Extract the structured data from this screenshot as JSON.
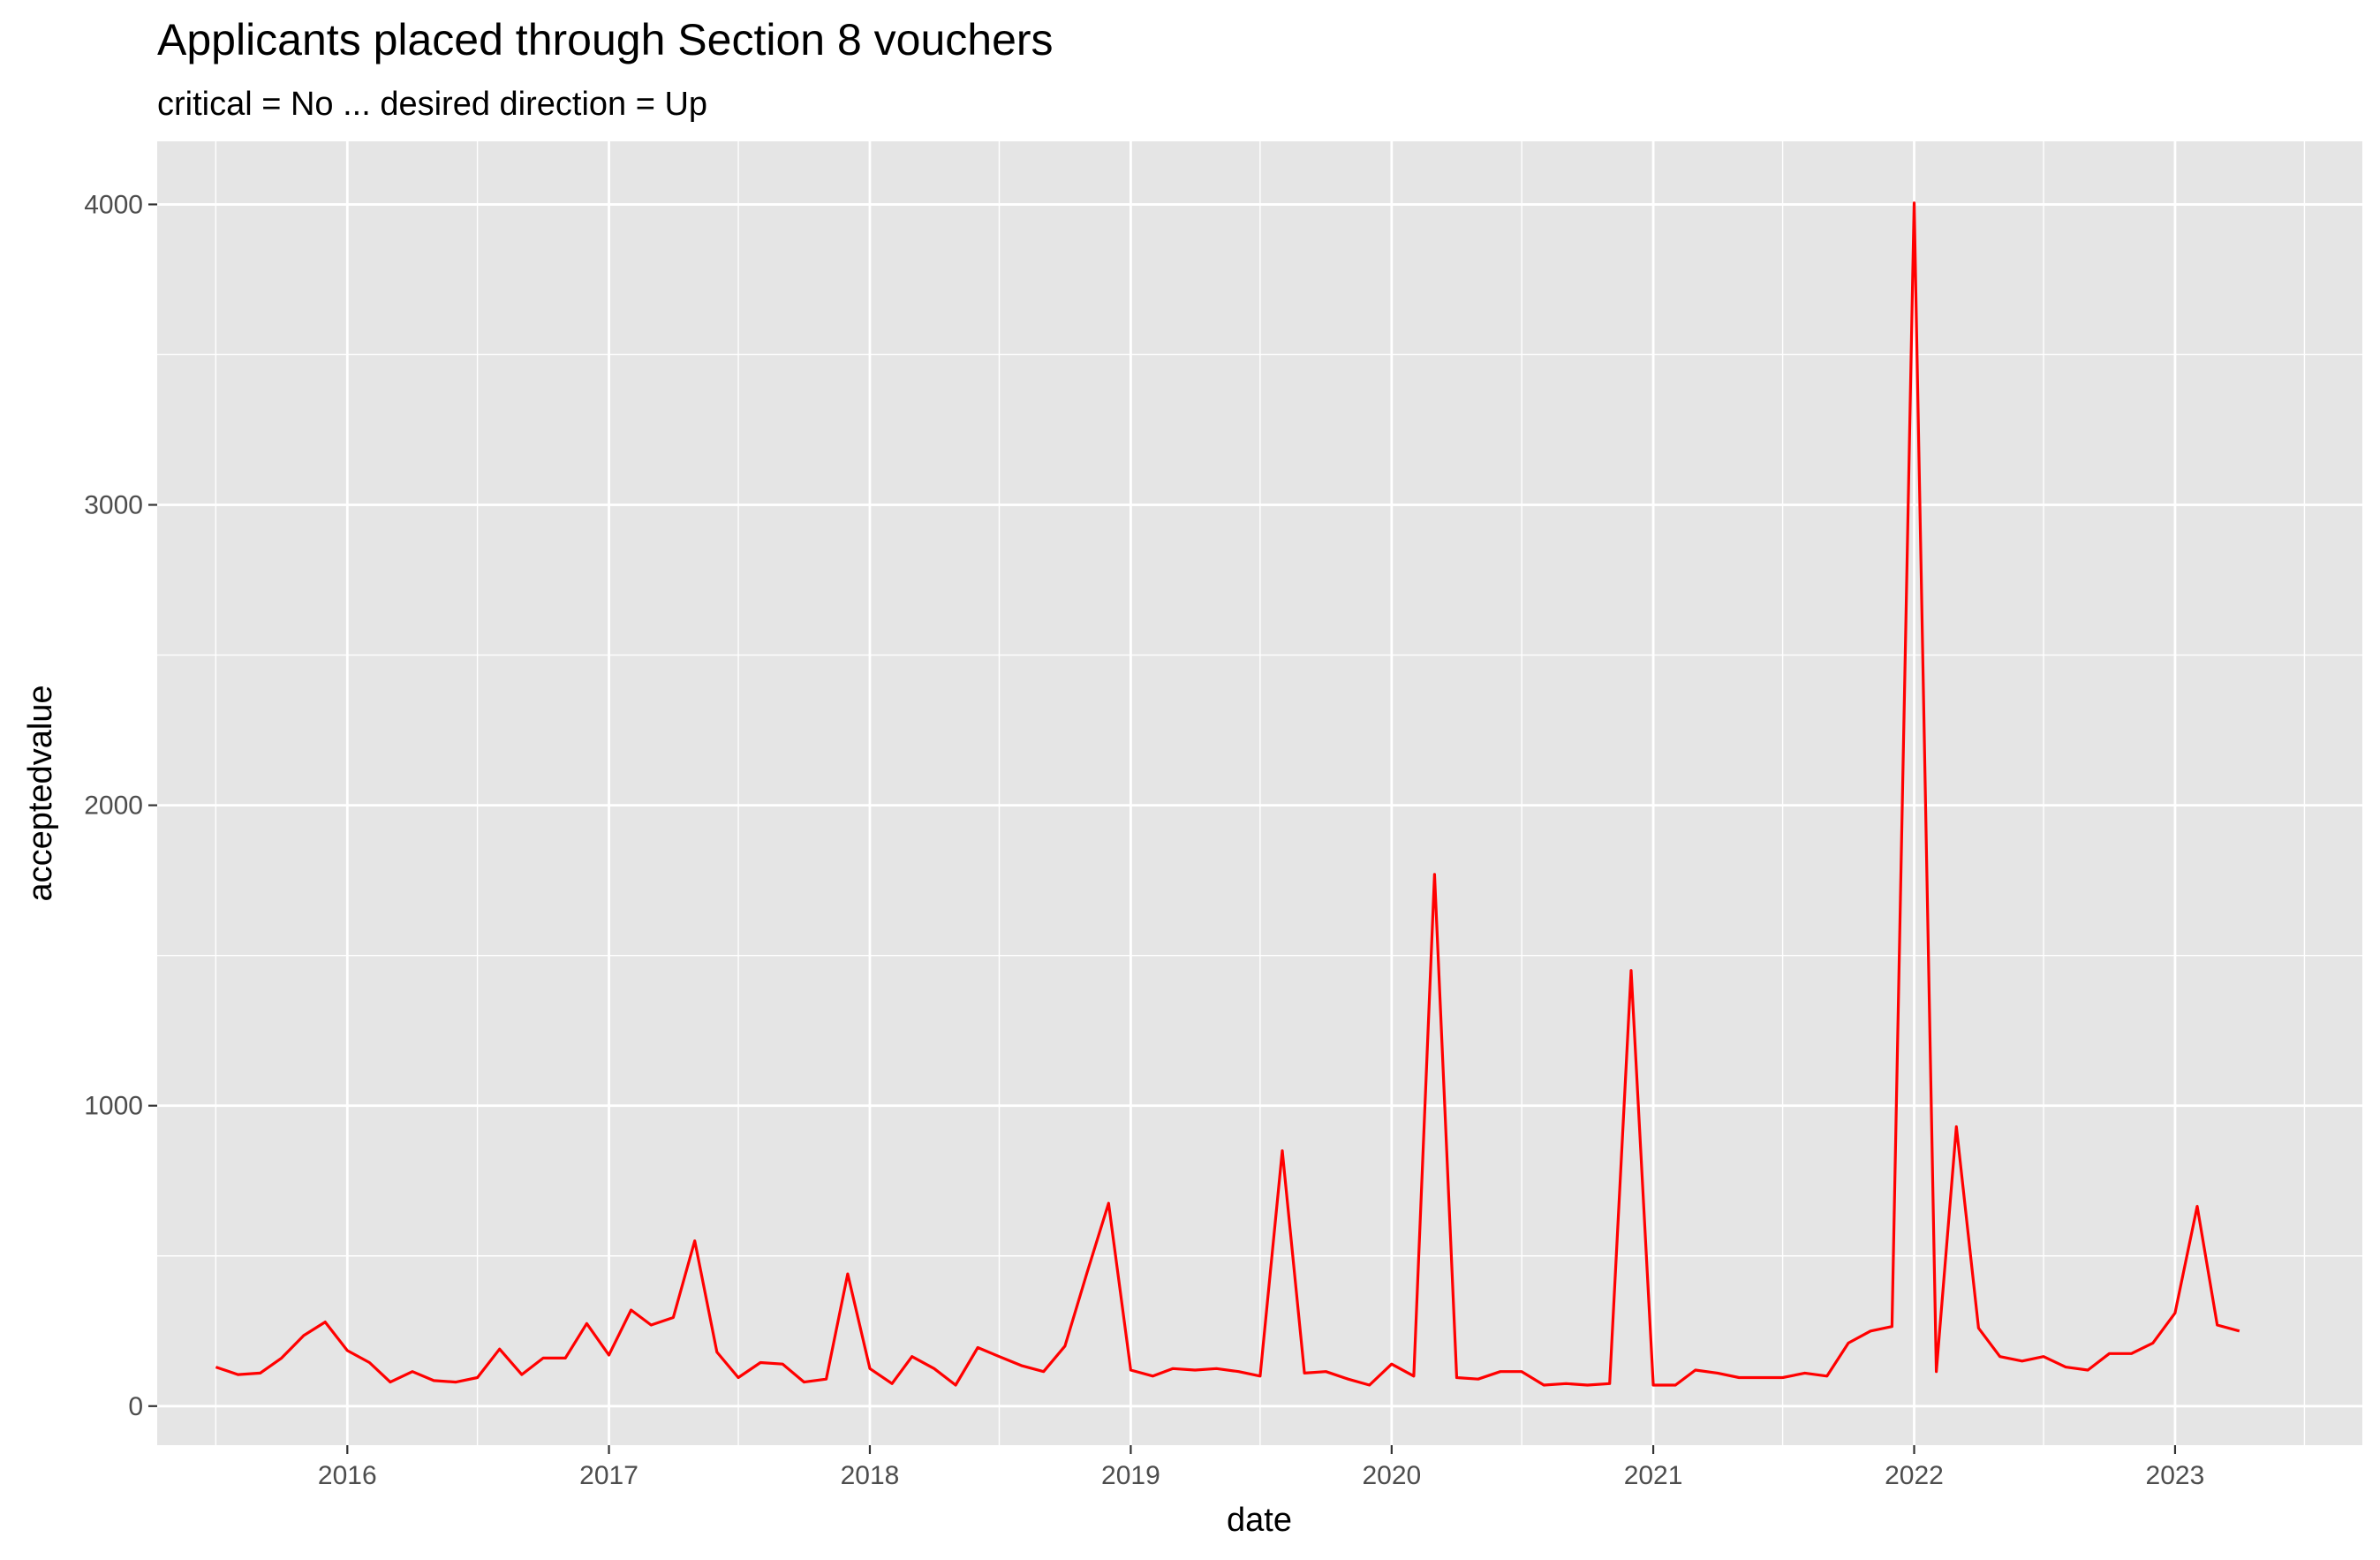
{
  "chart_data": {
    "type": "line",
    "title": "Applicants placed through Section 8 vouchers",
    "subtitle": "critical = No ... desired direction = Up",
    "xlabel": "date",
    "ylabel": "acceptedvalue",
    "xlim": [
      "2015-04-10",
      "2023-09-20"
    ],
    "ylim": [
      -130,
      4210
    ],
    "x_ticks": [
      "2016-01-01",
      "2017-01-01",
      "2018-01-01",
      "2019-01-01",
      "2020-01-01",
      "2021-01-01",
      "2022-01-01",
      "2023-01-01"
    ],
    "x_tick_labels": [
      "2016",
      "2017",
      "2018",
      "2019",
      "2020",
      "2021",
      "2022",
      "2023"
    ],
    "y_ticks": [
      0,
      1000,
      2000,
      3000,
      4000
    ],
    "y_tick_labels": [
      "0",
      "1000",
      "2000",
      "3000",
      "4000"
    ],
    "grid": true,
    "colors": {
      "panel": "#e5e5e5",
      "grid": "#ffffff",
      "line": "#ff0000"
    },
    "series": [
      {
        "color": "#ff0000",
        "x": [
          "2015-07-01",
          "2015-08-01",
          "2015-09-01",
          "2015-10-01",
          "2015-11-01",
          "2015-12-01",
          "2016-01-01",
          "2016-02-01",
          "2016-03-01",
          "2016-04-01",
          "2016-05-01",
          "2016-06-01",
          "2016-07-01",
          "2016-08-01",
          "2016-09-01",
          "2016-10-01",
          "2016-11-01",
          "2016-12-01",
          "2017-01-01",
          "2017-02-01",
          "2017-03-01",
          "2017-04-01",
          "2017-05-01",
          "2017-06-01",
          "2017-07-01",
          "2017-08-01",
          "2017-09-01",
          "2017-10-01",
          "2017-11-01",
          "2017-12-01",
          "2018-01-01",
          "2018-02-01",
          "2018-03-01",
          "2018-04-01",
          "2018-05-01",
          "2018-06-01",
          "2018-07-01",
          "2018-08-01",
          "2018-09-01",
          "2018-10-01",
          "2018-11-01",
          "2018-12-01",
          "2019-01-01",
          "2019-02-01",
          "2019-03-01",
          "2019-04-01",
          "2019-05-01",
          "2019-06-01",
          "2019-07-01",
          "2019-08-01",
          "2019-09-01",
          "2019-10-01",
          "2019-11-01",
          "2019-12-01",
          "2020-01-01",
          "2020-02-01",
          "2020-03-01",
          "2020-04-01",
          "2020-05-01",
          "2020-06-01",
          "2020-07-01",
          "2020-08-01",
          "2020-09-01",
          "2020-10-01",
          "2020-11-01",
          "2020-12-01",
          "2021-01-01",
          "2021-02-01",
          "2021-03-01",
          "2021-04-01",
          "2021-05-01",
          "2021-06-01",
          "2021-07-01",
          "2021-08-01",
          "2021-09-01",
          "2021-10-01",
          "2021-11-01",
          "2021-12-01",
          "2022-01-01",
          "2022-02-01",
          "2022-03-01",
          "2022-04-01",
          "2022-05-01",
          "2022-06-01",
          "2022-07-01",
          "2022-08-01",
          "2022-09-01",
          "2022-10-01",
          "2022-11-01",
          "2022-12-01",
          "2023-01-01",
          "2023-02-01",
          "2023-03-01",
          "2023-04-01"
        ],
        "y": [
          130,
          105,
          110,
          160,
          235,
          280,
          185,
          145,
          80,
          115,
          85,
          80,
          95,
          190,
          105,
          160,
          160,
          275,
          170,
          320,
          270,
          295,
          550,
          180,
          95,
          145,
          140,
          80,
          90,
          440,
          125,
          75,
          165,
          125,
          70,
          195,
          165,
          135,
          115,
          200,
          445,
          675,
          120,
          100,
          125,
          120,
          125,
          115,
          100,
          850,
          110,
          115,
          90,
          70,
          140,
          100,
          1770,
          95,
          90,
          115,
          115,
          70,
          75,
          70,
          75,
          1450,
          70,
          70,
          120,
          110,
          95,
          95,
          95,
          110,
          100,
          210,
          250,
          265,
          4005,
          115,
          930,
          260,
          165,
          150,
          165,
          130,
          120,
          175,
          175,
          210,
          310,
          665,
          270,
          250
        ]
      }
    ]
  }
}
